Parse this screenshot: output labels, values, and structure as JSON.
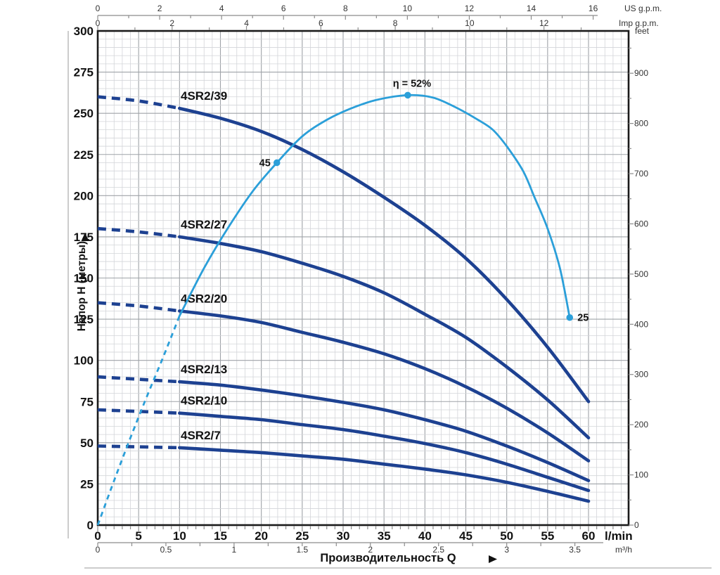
{
  "chart_data": {
    "type": "line",
    "title": "",
    "xlabel": "Производительность Q",
    "ylabel": "Напор H (метры)",
    "x_axis_lmin": {
      "unit": "l/min",
      "range": [
        0,
        65
      ],
      "tick_labels": [
        0,
        5,
        10,
        15,
        20,
        25,
        30,
        35,
        40,
        45,
        50,
        55,
        60
      ]
    },
    "x_axis_m3h": {
      "unit": "m³/h",
      "range": [
        0,
        3.75
      ],
      "tick_labels": [
        "0",
        "0.5",
        "1",
        "1.5",
        "2",
        "2.5",
        "3",
        "3.5"
      ]
    },
    "x_axis_usgpm": {
      "unit": "US g.p.m.",
      "range": [
        0,
        16.6
      ],
      "tick_labels": [
        0,
        2,
        4,
        6,
        8,
        10,
        12,
        14,
        16
      ]
    },
    "x_axis_impgpm": {
      "unit": "Imp g.p.m.",
      "range": [
        0,
        13.9
      ],
      "tick_labels": [
        0,
        2,
        4,
        6,
        8,
        10,
        12
      ]
    },
    "y_axis_m": {
      "unit": "метры",
      "range": [
        0,
        300
      ],
      "tick_labels": [
        0,
        25,
        50,
        75,
        100,
        125,
        150,
        175,
        200,
        225,
        250,
        275,
        300
      ]
    },
    "y_axis_feet": {
      "unit": "feet",
      "range": [
        0,
        984
      ],
      "tick_labels": [
        0,
        100,
        200,
        300,
        400,
        500,
        600,
        700,
        800,
        900
      ]
    },
    "grid": {
      "minor_x_lmin": 1,
      "minor_y_m": 5,
      "major_x_lmin": 5,
      "major_y_m": 25
    },
    "min_continuous_flow_lmin": 10,
    "series": [
      {
        "name": "4SR2/39",
        "points": [
          [
            0,
            260
          ],
          [
            5,
            257.5
          ],
          [
            10,
            253
          ],
          [
            15,
            247
          ],
          [
            20,
            239
          ],
          [
            25,
            228
          ],
          [
            30,
            214.5
          ],
          [
            35,
            199
          ],
          [
            40,
            182
          ],
          [
            45,
            162
          ],
          [
            50,
            137
          ],
          [
            55,
            108
          ],
          [
            60,
            75
          ]
        ]
      },
      {
        "name": "4SR2/27",
        "points": [
          [
            0,
            180
          ],
          [
            5,
            178
          ],
          [
            10,
            175
          ],
          [
            15,
            171
          ],
          [
            20,
            166
          ],
          [
            25,
            159
          ],
          [
            30,
            151
          ],
          [
            35,
            141
          ],
          [
            40,
            128
          ],
          [
            45,
            114
          ],
          [
            50,
            96
          ],
          [
            55,
            76
          ],
          [
            60,
            53
          ]
        ]
      },
      {
        "name": "4SR2/20",
        "points": [
          [
            0,
            135
          ],
          [
            5,
            133
          ],
          [
            10,
            130
          ],
          [
            15,
            127
          ],
          [
            20,
            123
          ],
          [
            25,
            117
          ],
          [
            30,
            111
          ],
          [
            35,
            104
          ],
          [
            40,
            95
          ],
          [
            45,
            84
          ],
          [
            50,
            71
          ],
          [
            55,
            56
          ],
          [
            60,
            39
          ]
        ]
      },
      {
        "name": "4SR2/13",
        "points": [
          [
            0,
            90
          ],
          [
            5,
            88.5
          ],
          [
            10,
            87
          ],
          [
            15,
            85
          ],
          [
            20,
            82
          ],
          [
            25,
            78.5
          ],
          [
            30,
            74.5
          ],
          [
            35,
            70
          ],
          [
            40,
            64
          ],
          [
            45,
            57
          ],
          [
            50,
            48
          ],
          [
            55,
            38
          ],
          [
            60,
            27
          ]
        ]
      },
      {
        "name": "4SR2/10",
        "points": [
          [
            0,
            70
          ],
          [
            5,
            69
          ],
          [
            10,
            68
          ],
          [
            15,
            66
          ],
          [
            20,
            64
          ],
          [
            25,
            61
          ],
          [
            30,
            58
          ],
          [
            35,
            54
          ],
          [
            40,
            49.5
          ],
          [
            45,
            44
          ],
          [
            50,
            37
          ],
          [
            55,
            29
          ],
          [
            60,
            21
          ]
        ]
      },
      {
        "name": "4SR2/7",
        "points": [
          [
            0,
            48
          ],
          [
            5,
            47.5
          ],
          [
            10,
            47
          ],
          [
            15,
            45.5
          ],
          [
            20,
            44
          ],
          [
            25,
            42
          ],
          [
            30,
            40
          ],
          [
            35,
            37
          ],
          [
            40,
            34
          ],
          [
            45,
            30.5
          ],
          [
            50,
            26
          ],
          [
            55,
            20.5
          ],
          [
            60,
            14.5
          ]
        ]
      }
    ],
    "efficiency_curve": {
      "name": "η",
      "points": [
        [
          0,
          0
        ],
        [
          2,
          27
        ],
        [
          4,
          53
        ],
        [
          6,
          78
        ],
        [
          8,
          102
        ],
        [
          10,
          127
        ],
        [
          13,
          156
        ],
        [
          16,
          181
        ],
        [
          19,
          203
        ],
        [
          21.9,
          220
        ],
        [
          25,
          236
        ],
        [
          28,
          246
        ],
        [
          31,
          253
        ],
        [
          34,
          258
        ],
        [
          37.9,
          261
        ],
        [
          41,
          259.5
        ],
        [
          44,
          253
        ],
        [
          46.5,
          246
        ],
        [
          48.3,
          240
        ],
        [
          50,
          230
        ],
        [
          52,
          215
        ],
        [
          53.4,
          199
        ],
        [
          55,
          180
        ],
        [
          56.5,
          156
        ],
        [
          57.7,
          126
        ]
      ],
      "markers": [
        {
          "q": 21.9,
          "label": "45"
        },
        {
          "q": 37.9,
          "label": "η = 52%"
        },
        {
          "q": 57.7,
          "label": "25"
        }
      ]
    }
  },
  "colors": {
    "pump_curve": "#1d4191",
    "efficiency": "#2b9fd9",
    "grid_minor": "#d3d5d9",
    "grid_major": "#9fa3a8",
    "axis_line": "#8c8c8c",
    "border": "#1a1a1a",
    "text": "#111111",
    "text_small": "#333333",
    "rule": "#999999"
  }
}
